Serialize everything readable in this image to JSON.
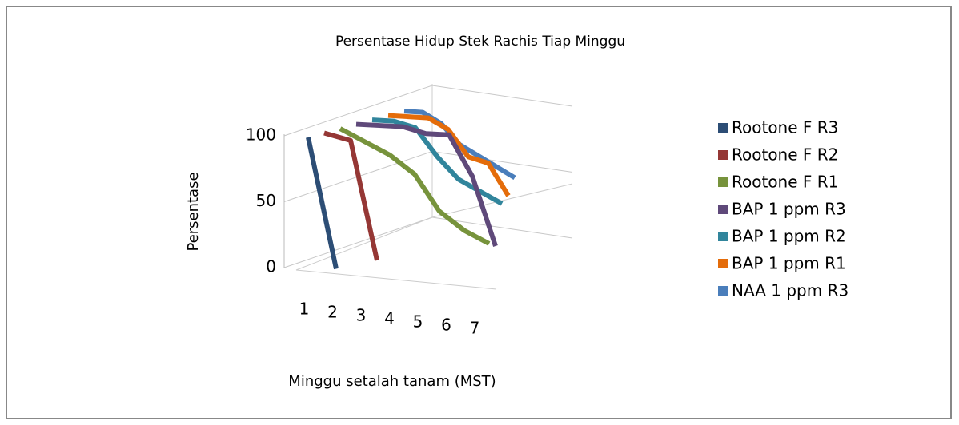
{
  "chart_data": {
    "type": "line3d",
    "title": "Persentase Hidup Stek Rachis Tiap Minggu",
    "x_label": "Minggu setalah tanam (MST)",
    "y_label": "Persentase",
    "categories": [
      "1",
      "2",
      "3",
      "4",
      "5",
      "6",
      "7"
    ],
    "ylim": [
      0,
      100
    ],
    "yticks": [
      0,
      50,
      100
    ],
    "grid": true,
    "legend": "right",
    "series": [
      {
        "name": "Rootone F R3",
        "color": "#2c4d75",
        "values": [
          100,
          0,
          null,
          null,
          null,
          null,
          null
        ]
      },
      {
        "name": "Rootone F R2",
        "color": "#953735",
        "values": [
          100,
          95,
          0,
          null,
          null,
          null,
          null
        ]
      },
      {
        "name": "Rootone F R1",
        "color": "#77933c",
        "values": [
          100,
          90,
          80,
          65,
          35,
          20,
          10
        ]
      },
      {
        "name": "BAP 1 ppm R3",
        "color": "#5f497a",
        "values": [
          100,
          100,
          100,
          95,
          95,
          60,
          0
        ]
      },
      {
        "name": "BAP 1 ppm R2",
        "color": "#31859c",
        "values": [
          100,
          100,
          95,
          70,
          50,
          40,
          30
        ]
      },
      {
        "name": "BAP 1 ppm R1",
        "color": "#e46c0a",
        "values": [
          100,
          100,
          100,
          90,
          65,
          60,
          30
        ]
      },
      {
        "name": "NAA 1 ppm R3",
        "color": "#4a7ebb",
        "values": [
          100,
          100,
          90,
          70,
          60,
          50,
          40
        ]
      }
    ]
  }
}
